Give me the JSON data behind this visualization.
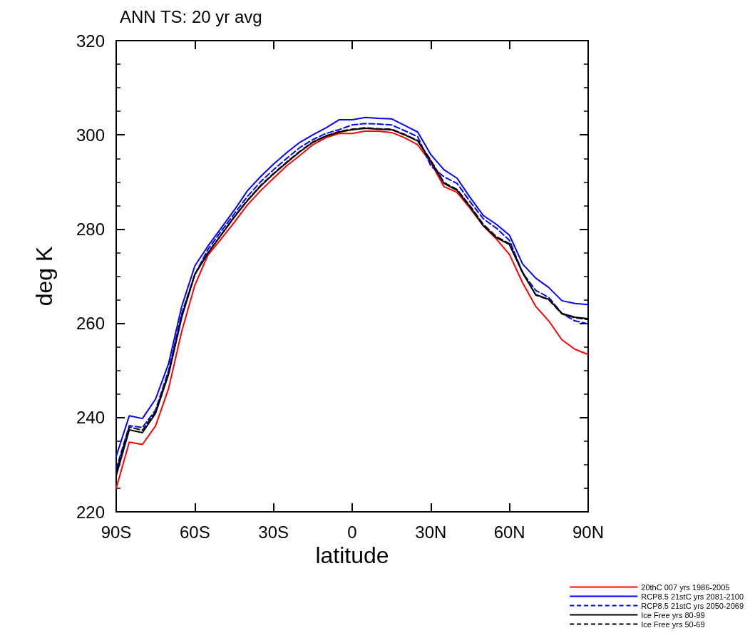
{
  "chart_data": {
    "type": "line",
    "title": "ANN TS: 20 yr avg",
    "xlabel": "latitude",
    "ylabel": "deg K",
    "x": [
      -90,
      -85,
      -80,
      -75,
      -70,
      -65,
      -60,
      -55,
      -50,
      -45,
      -40,
      -35,
      -30,
      -25,
      -20,
      -15,
      -10,
      -5,
      0,
      5,
      10,
      15,
      20,
      25,
      30,
      35,
      40,
      45,
      50,
      55,
      60,
      65,
      70,
      75,
      80,
      85,
      90
    ],
    "xlim": [
      -90,
      90
    ],
    "xticks": [
      {
        "value": -90,
        "label": "90S"
      },
      {
        "value": -60,
        "label": "60S"
      },
      {
        "value": -30,
        "label": "30S"
      },
      0,
      {
        "value": 30,
        "label": "30N"
      },
      {
        "value": 60,
        "label": "60N"
      },
      {
        "value": 90,
        "label": "90N"
      }
    ],
    "ylim": [
      220,
      320
    ],
    "yticks": [
      220,
      240,
      260,
      280,
      300,
      320
    ],
    "grid": false,
    "legend": "bottom right",
    "marker": "none",
    "series": [
      {
        "name": "20thC 007 yrs 1986-2005",
        "color": "#ff0000",
        "line_style": "solid",
        "values": [
          225.0,
          234.8,
          234.3,
          238.2,
          246.2,
          258.3,
          268.1,
          274.5,
          277.9,
          281.4,
          285.1,
          288.1,
          290.8,
          293.4,
          295.6,
          297.9,
          299.4,
          300.3,
          300.3,
          300.8,
          300.8,
          300.5,
          299.4,
          297.9,
          294.1,
          289.0,
          287.8,
          284.4,
          280.7,
          277.9,
          274.6,
          268.6,
          263.6,
          260.5,
          256.5,
          254.5,
          253.4
        ]
      },
      {
        "name": "RCP8.5 21stC yrs 2081-2100",
        "color": "#0000ff",
        "line_style": "solid",
        "values": [
          231.8,
          240.4,
          239.8,
          243.9,
          251.5,
          263.6,
          272.2,
          276.4,
          280.2,
          284.0,
          288.1,
          291.1,
          293.8,
          296.2,
          298.4,
          300.0,
          301.5,
          303.2,
          303.2,
          303.7,
          303.5,
          303.4,
          302.0,
          300.6,
          295.8,
          292.6,
          290.8,
          286.7,
          282.9,
          281.0,
          278.7,
          272.6,
          269.6,
          267.6,
          264.8,
          264.2,
          264.0
        ]
      },
      {
        "name": "RCP8.5 21stC yrs 2050-2069",
        "color": "#0000ff",
        "line_style": "dashed",
        "values": [
          229.1,
          238.3,
          237.9,
          241.6,
          250.0,
          262.1,
          270.4,
          275.7,
          279.5,
          283.2,
          286.9,
          290.0,
          292.6,
          295.0,
          297.3,
          299.0,
          300.3,
          301.1,
          302.1,
          302.4,
          302.3,
          302.1,
          300.9,
          299.6,
          293.4,
          291.1,
          289.7,
          285.8,
          282.2,
          280.2,
          277.6,
          270.7,
          267.0,
          265.5,
          262.1,
          260.5,
          259.9
        ]
      },
      {
        "name": "Ice Free yrs 80-99",
        "color": "#000000",
        "line_style": "solid",
        "values": [
          227.7,
          237.4,
          236.8,
          240.9,
          249.2,
          261.3,
          270.4,
          274.9,
          278.7,
          282.5,
          286.0,
          289.1,
          291.7,
          294.1,
          296.4,
          298.4,
          299.7,
          300.6,
          301.1,
          301.4,
          301.2,
          301.1,
          300.0,
          298.7,
          294.4,
          289.7,
          288.2,
          284.7,
          280.7,
          278.2,
          276.7,
          270.7,
          266.1,
          265.1,
          262.1,
          261.3,
          261.0
        ]
      },
      {
        "name": "Ice Free yrs 50-69",
        "color": "#000000",
        "line_style": "dashed",
        "values": [
          228.5,
          238.0,
          237.3,
          241.2,
          249.5,
          261.5,
          270.4,
          275.0,
          278.8,
          282.6,
          286.1,
          289.2,
          291.8,
          294.2,
          296.5,
          298.5,
          299.8,
          300.7,
          301.2,
          301.5,
          301.3,
          301.2,
          300.1,
          298.8,
          294.6,
          289.9,
          288.4,
          284.9,
          281.0,
          278.4,
          276.9,
          270.9,
          266.0,
          265.0,
          262.0,
          261.2,
          260.8
        ]
      }
    ]
  }
}
